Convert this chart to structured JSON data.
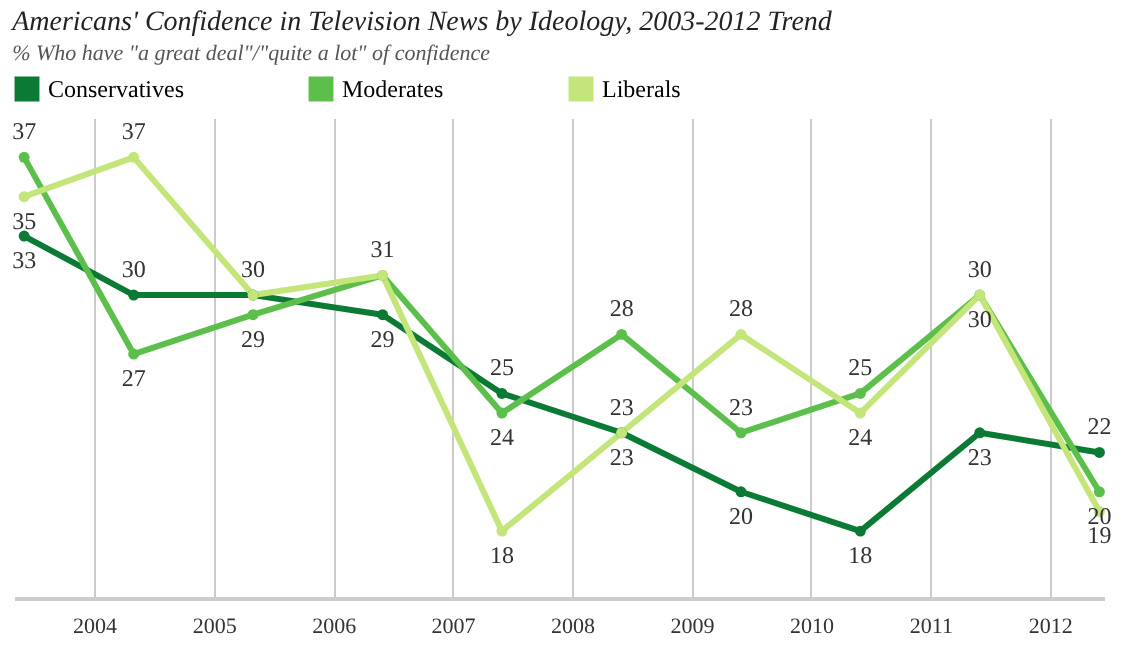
{
  "chart_data": {
    "type": "line",
    "title": "Americans' Confidence in Television News by Ideology, 2003-2012 Trend",
    "subtitle": "% Who have \"a great deal\"/\"quite a lot\" of confidence",
    "x": [
      "2003-06",
      "2004-05",
      "2005-05",
      "2006-06",
      "2007-06",
      "2008-06",
      "2009-06",
      "2010-06",
      "2011-06",
      "2012-06"
    ],
    "series": [
      {
        "name": "Conservatives",
        "color": "#0b7a35",
        "values": [
          33,
          30,
          30,
          29,
          25,
          23,
          20,
          18,
          23,
          22
        ],
        "value_labels": [
          "33",
          "30",
          "30",
          "29",
          "25",
          "23",
          "20",
          "18",
          "23",
          "22"
        ]
      },
      {
        "name": "Moderates",
        "color": "#5cbf4c",
        "values": [
          37,
          27,
          29,
          31,
          24,
          28,
          23,
          25,
          30,
          20
        ],
        "value_labels": [
          "37",
          "27",
          "29",
          "31",
          "24",
          "28",
          "23",
          "25",
          "30",
          "20"
        ]
      },
      {
        "name": "Liberals",
        "color": "#c4e57a",
        "values": [
          35,
          37,
          30,
          31,
          18,
          23,
          28,
          24,
          30,
          19
        ],
        "value_labels": [
          "35",
          "37",
          null,
          null,
          "18",
          "23",
          "28",
          "24",
          "30",
          "19"
        ]
      }
    ],
    "xlim": [
      "2003-05",
      "2012-06-15"
    ],
    "xticks": [
      "2004",
      "2005",
      "2006",
      "2007",
      "2008",
      "2009",
      "2010",
      "2011",
      "2012"
    ],
    "ylim": [
      14.6,
      39
    ],
    "tick_labels": "x",
    "grid": "x",
    "legend": "top left",
    "marker": "circle",
    "line_style": "solid"
  }
}
